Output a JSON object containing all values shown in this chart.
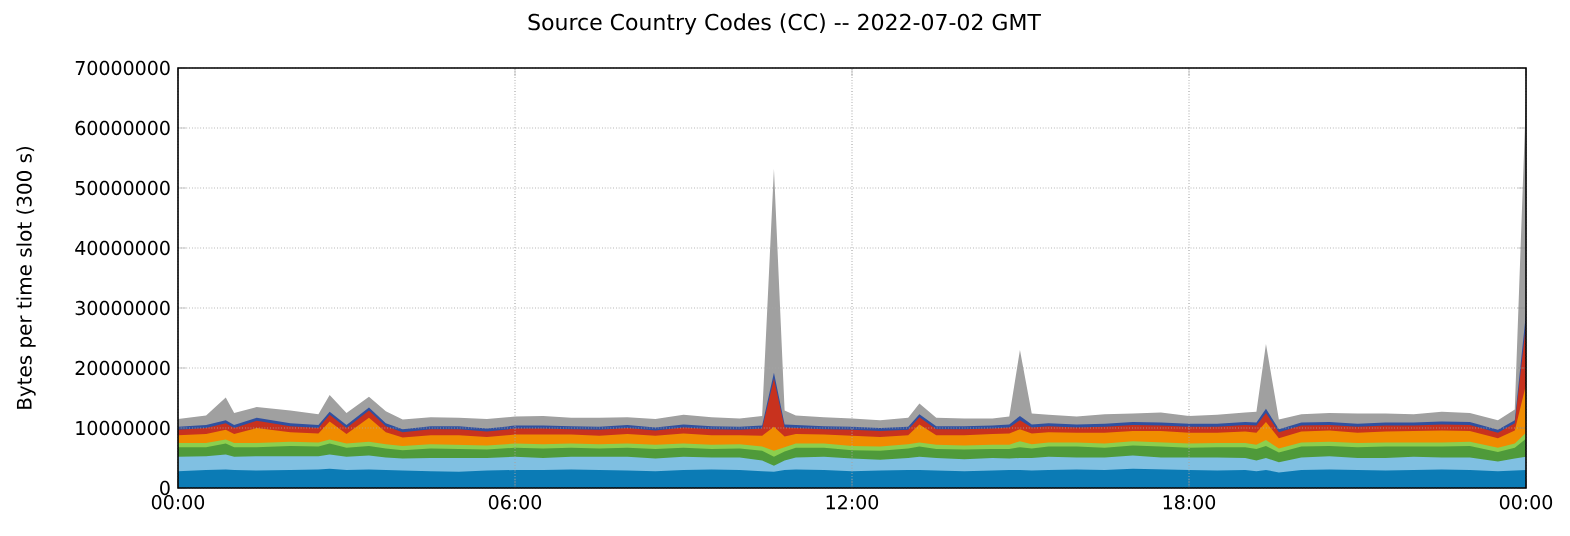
{
  "chart_data": {
    "type": "area",
    "title": "Source Country Codes (CC) -- 2022-07-02 GMT",
    "ylabel": "Bytes per time slot (300 s)",
    "stacked": true,
    "grid": true,
    "xlim": [
      0,
      24
    ],
    "ylim": [
      0,
      70000000
    ],
    "xticks": [
      {
        "value": 0,
        "label": "00:00"
      },
      {
        "value": 6,
        "label": "06:00"
      },
      {
        "value": 12,
        "label": "12:00"
      },
      {
        "value": 18,
        "label": "18:00"
      },
      {
        "value": 24,
        "label": "00:00"
      }
    ],
    "yticks": [
      0,
      10000000,
      20000000,
      30000000,
      40000000,
      50000000,
      60000000,
      70000000
    ],
    "x": [
      0,
      0.5,
      0.85,
      1,
      1.4,
      2,
      2.5,
      2.7,
      3,
      3.4,
      3.7,
      4,
      4.5,
      5,
      5.5,
      6,
      6.5,
      7,
      7.5,
      8,
      8.5,
      9,
      9.5,
      10,
      10.4,
      10.61,
      10.8,
      11,
      11.5,
      12,
      12.5,
      13,
      13.2,
      13.5,
      14,
      14.5,
      14.8,
      14.99,
      15.2,
      15.5,
      16,
      16.5,
      17,
      17.5,
      18,
      18.5,
      19,
      19.2,
      19.37,
      19.6,
      20,
      20.5,
      21,
      21.5,
      22,
      22.5,
      23,
      23.5,
      23.8,
      24
    ],
    "series": [
      {
        "color": "#0b7bb5",
        "values": [
          2800000.0,
          3000000.0,
          3100000.0,
          3000000.0,
          2900000.0,
          3000000.0,
          3100000.0,
          3200000.0,
          3000000.0,
          3100000.0,
          3000000.0,
          2900000.0,
          2800000.0,
          2700000.0,
          2900000.0,
          3000000.0,
          3000000.0,
          3100000.0,
          3000000.0,
          2900000.0,
          2800000.0,
          3000000.0,
          3100000.0,
          3000000.0,
          2800000.0,
          2700000.0,
          3000000.0,
          3100000.0,
          3000000.0,
          2800000.0,
          2900000.0,
          3000000.0,
          3000000.0,
          2900000.0,
          2800000.0,
          2900000.0,
          3000000.0,
          3000000.0,
          2900000.0,
          3000000.0,
          3100000.0,
          3000000.0,
          3200000.0,
          3100000.0,
          3000000.0,
          2900000.0,
          3000000.0,
          2800000.0,
          3000000.0,
          2600000.0,
          3000000.0,
          3100000.0,
          3000000.0,
          2900000.0,
          3000000.0,
          3100000.0,
          3000000.0,
          2800000.0,
          2900000.0,
          3000000.0
        ]
      },
      {
        "color": "#80c0e2",
        "values": [
          2400000.0,
          2300000.0,
          2500000.0,
          2200000.0,
          2400000.0,
          2300000.0,
          2200000.0,
          2400000.0,
          2200000.0,
          2300000.0,
          2100000.0,
          2000000.0,
          2200000.0,
          2300000.0,
          2100000.0,
          2200000.0,
          2000000.0,
          2100000.0,
          2200000.0,
          2300000.0,
          2100000.0,
          2200000.0,
          2000000.0,
          2100000.0,
          1800000.0,
          1000000.0,
          1600000.0,
          2000000.0,
          2200000.0,
          2100000.0,
          1800000.0,
          2000000.0,
          2200000.0,
          2100000.0,
          2000000.0,
          2100000.0,
          1900000.0,
          2000000.0,
          2100000.0,
          2200000.0,
          2000000.0,
          2100000.0,
          2200000.0,
          2000000.0,
          2100000.0,
          2200000.0,
          2000000.0,
          1800000.0,
          2000000.0,
          1700000.0,
          2100000.0,
          2200000.0,
          2000000.0,
          2100000.0,
          2200000.0,
          2000000.0,
          2100000.0,
          1600000.0,
          2000000.0,
          2200000.0
        ]
      },
      {
        "color": "#4f9a3a",
        "values": [
          1600000.0,
          1500000.0,
          1800000.0,
          1600000.0,
          1500000.0,
          1700000.0,
          1600000.0,
          1800000.0,
          1500000.0,
          1600000.0,
          1500000.0,
          1400000.0,
          1600000.0,
          1500000.0,
          1400000.0,
          1500000.0,
          1600000.0,
          1500000.0,
          1400000.0,
          1500000.0,
          1600000.0,
          1500000.0,
          1400000.0,
          1500000.0,
          1600000.0,
          1500000.0,
          1500000.0,
          1600000.0,
          1500000.0,
          1400000.0,
          1500000.0,
          1600000.0,
          1700000.0,
          1500000.0,
          1600000.0,
          1500000.0,
          1600000.0,
          1800000.0,
          1600000.0,
          1700000.0,
          1800000.0,
          1600000.0,
          1700000.0,
          1800000.0,
          1600000.0,
          1700000.0,
          1800000.0,
          1900000.0,
          2000000.0,
          1600000.0,
          1800000.0,
          1700000.0,
          1800000.0,
          1900000.0,
          1700000.0,
          1800000.0,
          1900000.0,
          1600000.0,
          1800000.0,
          3000000.0
        ]
      },
      {
        "color": "#8ccf4d",
        "values": [
          700000.0,
          700000.0,
          700000.0,
          700000.0,
          700000.0,
          700000.0,
          700000.0,
          700000.0,
          700000.0,
          700000.0,
          700000.0,
          700000.0,
          700000.0,
          700000.0,
          700000.0,
          700000.0,
          700000.0,
          700000.0,
          700000.0,
          700000.0,
          700000.0,
          700000.0,
          700000.0,
          700000.0,
          700000.0,
          1000000.0,
          700000.0,
          700000.0,
          700000.0,
          700000.0,
          700000.0,
          700000.0,
          700000.0,
          700000.0,
          700000.0,
          700000.0,
          700000.0,
          1000000.0,
          700000.0,
          700000.0,
          700000.0,
          700000.0,
          700000.0,
          700000.0,
          700000.0,
          700000.0,
          700000.0,
          700000.0,
          1000000.0,
          700000.0,
          700000.0,
          700000.0,
          700000.0,
          700000.0,
          700000.0,
          700000.0,
          700000.0,
          700000.0,
          700000.0,
          1000000.0
        ]
      },
      {
        "color": "#f08c00",
        "values": [
          1300000.0,
          1500000.0,
          1600000.0,
          1500000.0,
          2500000.0,
          1600000.0,
          1500000.0,
          3000000.0,
          1600000.0,
          4000000.0,
          2000000.0,
          1400000.0,
          1500000.0,
          1600000.0,
          1400000.0,
          1500000.0,
          1600000.0,
          1500000.0,
          1400000.0,
          1600000.0,
          1500000.0,
          1700000.0,
          1600000.0,
          1500000.0,
          1800000.0,
          4000000.0,
          1800000.0,
          1600000.0,
          1500000.0,
          1700000.0,
          1600000.0,
          1500000.0,
          3000000.0,
          1600000.0,
          1700000.0,
          1800000.0,
          1900000.0,
          2000000.0,
          1800000.0,
          1700000.0,
          1600000.0,
          1800000.0,
          1700000.0,
          1900000.0,
          1800000.0,
          1700000.0,
          1900000.0,
          2000000.0,
          3000000.0,
          1700000.0,
          1800000.0,
          1900000.0,
          1700000.0,
          1800000.0,
          1900000.0,
          2000000.0,
          1800000.0,
          1600000.0,
          2200000.0,
          8000000.0
        ]
      },
      {
        "color": "#c8321e",
        "values": [
          900000.0,
          1000000.0,
          1100000.0,
          1000000.0,
          1200000.0,
          1000000.0,
          900000.0,
          1100000.0,
          1000000.0,
          1200000.0,
          1000000.0,
          900000.0,
          1000000.0,
          1000000.0,
          900000.0,
          1000000.0,
          1000000.0,
          900000.0,
          1000000.0,
          1000000.0,
          900000.0,
          1000000.0,
          1000000.0,
          900000.0,
          1200000.0,
          8000000.0,
          1500000.0,
          1000000.0,
          900000.0,
          1000000.0,
          1000000.0,
          900000.0,
          1200000.0,
          1000000.0,
          1000000.0,
          900000.0,
          1000000.0,
          1500000.0,
          1000000.0,
          1000000.0,
          900000.0,
          1000000.0,
          1000000.0,
          900000.0,
          1000000.0,
          1000000.0,
          1100000.0,
          1200000.0,
          1500000.0,
          1000000.0,
          1000000.0,
          900000.0,
          1000000.0,
          1000000.0,
          900000.0,
          1000000.0,
          1000000.0,
          900000.0,
          1200000.0,
          10000000.0
        ]
      },
      {
        "color": "#3050a0",
        "values": [
          500000.0,
          500000.0,
          500000.0,
          500000.0,
          500000.0,
          500000.0,
          500000.0,
          500000.0,
          500000.0,
          500000.0,
          500000.0,
          500000.0,
          500000.0,
          500000.0,
          500000.0,
          500000.0,
          500000.0,
          500000.0,
          500000.0,
          500000.0,
          500000.0,
          500000.0,
          500000.0,
          500000.0,
          500000.0,
          1000000.0,
          500000.0,
          500000.0,
          500000.0,
          500000.0,
          500000.0,
          500000.0,
          500000.0,
          500000.0,
          500000.0,
          500000.0,
          500000.0,
          700000.0,
          500000.0,
          500000.0,
          500000.0,
          500000.0,
          500000.0,
          500000.0,
          500000.0,
          500000.0,
          500000.0,
          500000.0,
          700000.0,
          500000.0,
          500000.0,
          500000.0,
          500000.0,
          500000.0,
          500000.0,
          500000.0,
          500000.0,
          500000.0,
          500000.0,
          2000000.0
        ]
      },
      {
        "color": "#a0a0a0",
        "values": [
          1300000.0,
          1600000.0,
          3800000.0,
          2000000.0,
          1800000.0,
          2100000.0,
          1800000.0,
          2800000.0,
          2000000.0,
          1800000.0,
          2000000.0,
          1600000.0,
          1500000.0,
          1400000.0,
          1600000.0,
          1500000.0,
          1600000.0,
          1400000.0,
          1500000.0,
          1300000.0,
          1400000.0,
          1600000.0,
          1500000.0,
          1400000.0,
          1600000.0,
          34000000.0,
          2300000.0,
          1600000.0,
          1500000.0,
          1400000.0,
          1300000.0,
          1500000.0,
          1800000.0,
          1400000.0,
          1300000.0,
          1200000.0,
          1300000.0,
          11000000.0,
          1800000.0,
          1400000.0,
          1300000.0,
          1600000.0,
          1400000.0,
          1700000.0,
          1300000.0,
          1500000.0,
          1600000.0,
          1800000.0,
          10800000.0,
          1600000.0,
          1400000.0,
          1500000.0,
          1700000.0,
          1500000.0,
          1400000.0,
          1600000.0,
          1500000.0,
          1600000.0,
          1800000.0,
          36000000.0
        ]
      }
    ]
  }
}
